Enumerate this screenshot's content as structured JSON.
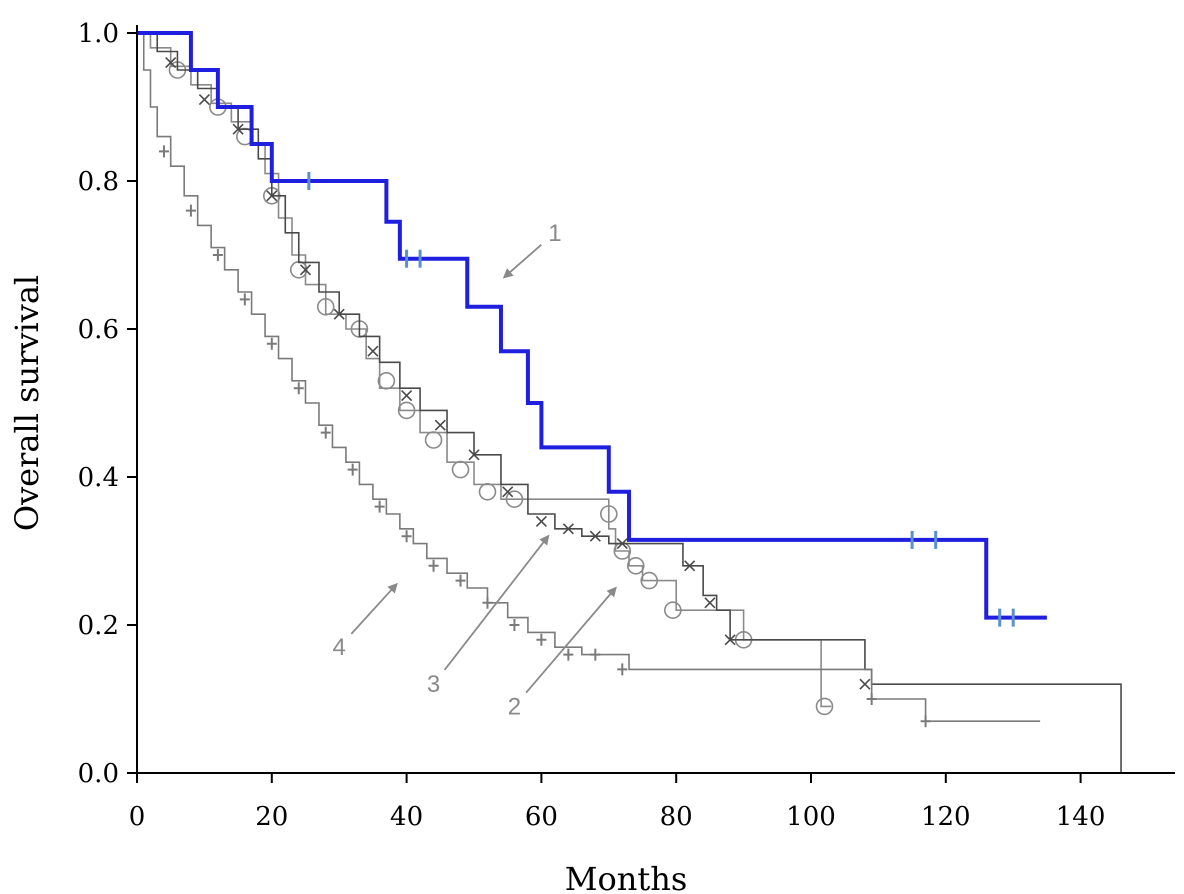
{
  "chart_data": {
    "type": "line",
    "subtype": "kaplan-meier",
    "xlabel": "Months",
    "ylabel": "Overall survival",
    "xlim": [
      0,
      155
    ],
    "ylim": [
      0,
      1.0
    ],
    "xticks": [
      0,
      20,
      40,
      60,
      80,
      100,
      120,
      140
    ],
    "yticks": [
      0.0,
      0.2,
      0.4,
      0.6,
      0.8,
      1.0
    ],
    "xtick_labels": [
      "0",
      "20",
      "40",
      "60",
      "80",
      "100",
      "120",
      "140"
    ],
    "ytick_labels": [
      "0.0",
      "0.2",
      "0.4",
      "0.6",
      "0.8",
      "1.0"
    ],
    "grid": false,
    "series": [
      {
        "name": "1",
        "color": "#1f1fe0",
        "steps": [
          [
            0,
            1.0
          ],
          [
            8,
            0.95
          ],
          [
            12,
            0.9
          ],
          [
            17,
            0.85
          ],
          [
            20,
            0.8
          ],
          [
            37,
            0.745
          ],
          [
            39,
            0.695
          ],
          [
            49,
            0.63
          ],
          [
            54,
            0.57
          ],
          [
            58,
            0.5
          ],
          [
            60,
            0.44
          ],
          [
            70,
            0.38
          ],
          [
            73,
            0.315
          ],
          [
            126,
            0.21
          ],
          [
            135,
            0.21
          ]
        ],
        "censors": [
          [
            25.5,
            0.8
          ],
          [
            40,
            0.695
          ],
          [
            42,
            0.695
          ],
          [
            115,
            0.315
          ],
          [
            118.5,
            0.315
          ],
          [
            128,
            0.21
          ],
          [
            130,
            0.21
          ]
        ]
      },
      {
        "name": "2",
        "color": "#8a8a8a",
        "steps": [
          [
            0,
            1.0
          ],
          [
            2,
            0.98
          ],
          [
            5,
            0.955
          ],
          [
            8,
            0.93
          ],
          [
            11,
            0.905
          ],
          [
            14,
            0.88
          ],
          [
            17,
            0.85
          ],
          [
            19,
            0.81
          ],
          [
            21,
            0.75
          ],
          [
            23,
            0.7
          ],
          [
            25,
            0.66
          ],
          [
            28,
            0.62
          ],
          [
            31,
            0.6
          ],
          [
            34,
            0.56
          ],
          [
            36,
            0.52
          ],
          [
            39,
            0.49
          ],
          [
            42,
            0.46
          ],
          [
            46,
            0.42
          ],
          [
            50,
            0.39
          ],
          [
            54,
            0.37
          ],
          [
            70,
            0.33
          ],
          [
            71,
            0.3
          ],
          [
            73,
            0.28
          ],
          [
            75,
            0.26
          ],
          [
            80,
            0.22
          ],
          [
            90,
            0.18
          ],
          [
            100,
            0.18
          ],
          [
            101.5,
            0.09
          ],
          [
            103,
            0.09
          ]
        ],
        "censors": [
          [
            6,
            0.95
          ],
          [
            12,
            0.9
          ],
          [
            16,
            0.86
          ],
          [
            20,
            0.78
          ],
          [
            24,
            0.68
          ],
          [
            28,
            0.63
          ],
          [
            33,
            0.6
          ],
          [
            37,
            0.53
          ],
          [
            40,
            0.49
          ],
          [
            44,
            0.45
          ],
          [
            48,
            0.41
          ],
          [
            52,
            0.38
          ],
          [
            56,
            0.37
          ],
          [
            70,
            0.35
          ],
          [
            72,
            0.3
          ],
          [
            74,
            0.28
          ],
          [
            76,
            0.26
          ],
          [
            79.5,
            0.22
          ],
          [
            90,
            0.18
          ],
          [
            102,
            0.09
          ]
        ]
      },
      {
        "name": "3",
        "color": "#4a4a4a",
        "steps": [
          [
            0,
            1.0
          ],
          [
            3,
            0.975
          ],
          [
            6,
            0.95
          ],
          [
            9,
            0.925
          ],
          [
            12,
            0.9
          ],
          [
            15,
            0.87
          ],
          [
            18,
            0.83
          ],
          [
            20,
            0.78
          ],
          [
            22,
            0.73
          ],
          [
            24,
            0.69
          ],
          [
            27,
            0.65
          ],
          [
            30,
            0.62
          ],
          [
            33,
            0.59
          ],
          [
            36,
            0.555
          ],
          [
            39,
            0.52
          ],
          [
            42,
            0.49
          ],
          [
            46,
            0.46
          ],
          [
            50,
            0.43
          ],
          [
            54,
            0.39
          ],
          [
            58,
            0.35
          ],
          [
            62,
            0.33
          ],
          [
            66,
            0.32
          ],
          [
            70,
            0.31
          ],
          [
            81,
            0.28
          ],
          [
            84,
            0.24
          ],
          [
            86,
            0.22
          ],
          [
            88,
            0.18
          ],
          [
            108,
            0.14
          ],
          [
            109,
            0.12
          ],
          [
            146,
            0.0
          ]
        ],
        "censors": [
          [
            5,
            0.96
          ],
          [
            10,
            0.91
          ],
          [
            15,
            0.87
          ],
          [
            20,
            0.78
          ],
          [
            25,
            0.68
          ],
          [
            30,
            0.62
          ],
          [
            35,
            0.57
          ],
          [
            40,
            0.51
          ],
          [
            45,
            0.47
          ],
          [
            50,
            0.43
          ],
          [
            55,
            0.38
          ],
          [
            60,
            0.34
          ],
          [
            64,
            0.33
          ],
          [
            68,
            0.32
          ],
          [
            72,
            0.31
          ],
          [
            82,
            0.28
          ],
          [
            85,
            0.23
          ],
          [
            88,
            0.18
          ],
          [
            108,
            0.12
          ]
        ]
      },
      {
        "name": "4",
        "color": "#7a7a7a",
        "steps": [
          [
            0,
            1.0
          ],
          [
            1,
            0.95
          ],
          [
            2,
            0.9
          ],
          [
            3,
            0.86
          ],
          [
            5,
            0.82
          ],
          [
            7,
            0.78
          ],
          [
            9,
            0.74
          ],
          [
            11,
            0.71
          ],
          [
            13,
            0.68
          ],
          [
            15,
            0.65
          ],
          [
            17,
            0.62
          ],
          [
            19,
            0.59
          ],
          [
            21,
            0.56
          ],
          [
            23,
            0.53
          ],
          [
            25,
            0.5
          ],
          [
            27,
            0.47
          ],
          [
            29,
            0.44
          ],
          [
            31,
            0.42
          ],
          [
            33,
            0.39
          ],
          [
            35,
            0.37
          ],
          [
            37,
            0.35
          ],
          [
            39,
            0.33
          ],
          [
            41,
            0.31
          ],
          [
            43,
            0.29
          ],
          [
            46,
            0.27
          ],
          [
            49,
            0.25
          ],
          [
            52,
            0.23
          ],
          [
            55,
            0.21
          ],
          [
            58,
            0.19
          ],
          [
            62,
            0.17
          ],
          [
            66,
            0.16
          ],
          [
            73,
            0.14
          ],
          [
            108,
            0.14
          ],
          [
            109,
            0.1
          ],
          [
            117,
            0.07
          ],
          [
            134,
            0.07
          ]
        ],
        "censors": [
          [
            4,
            0.84
          ],
          [
            8,
            0.76
          ],
          [
            12,
            0.7
          ],
          [
            16,
            0.64
          ],
          [
            20,
            0.58
          ],
          [
            24,
            0.52
          ],
          [
            28,
            0.46
          ],
          [
            32,
            0.41
          ],
          [
            36,
            0.36
          ],
          [
            40,
            0.32
          ],
          [
            44,
            0.28
          ],
          [
            48,
            0.26
          ],
          [
            52,
            0.23
          ],
          [
            56,
            0.2
          ],
          [
            60,
            0.18
          ],
          [
            64,
            0.16
          ],
          [
            68,
            0.16
          ],
          [
            72,
            0.14
          ],
          [
            109,
            0.1
          ],
          [
            117,
            0.07
          ]
        ]
      }
    ],
    "annotations": [
      {
        "label": "1",
        "text_pos": [
          62,
          0.73
        ],
        "arrow_to": [
          54.5,
          0.67
        ]
      },
      {
        "label": "2",
        "text_pos": [
          56,
          0.09
        ],
        "arrow_to": [
          71,
          0.25
        ]
      },
      {
        "label": "3",
        "text_pos": [
          44,
          0.12
        ],
        "arrow_to": [
          61,
          0.32
        ]
      },
      {
        "label": "4",
        "text_pos": [
          30,
          0.17
        ],
        "arrow_to": [
          38.5,
          0.255
        ]
      }
    ]
  }
}
